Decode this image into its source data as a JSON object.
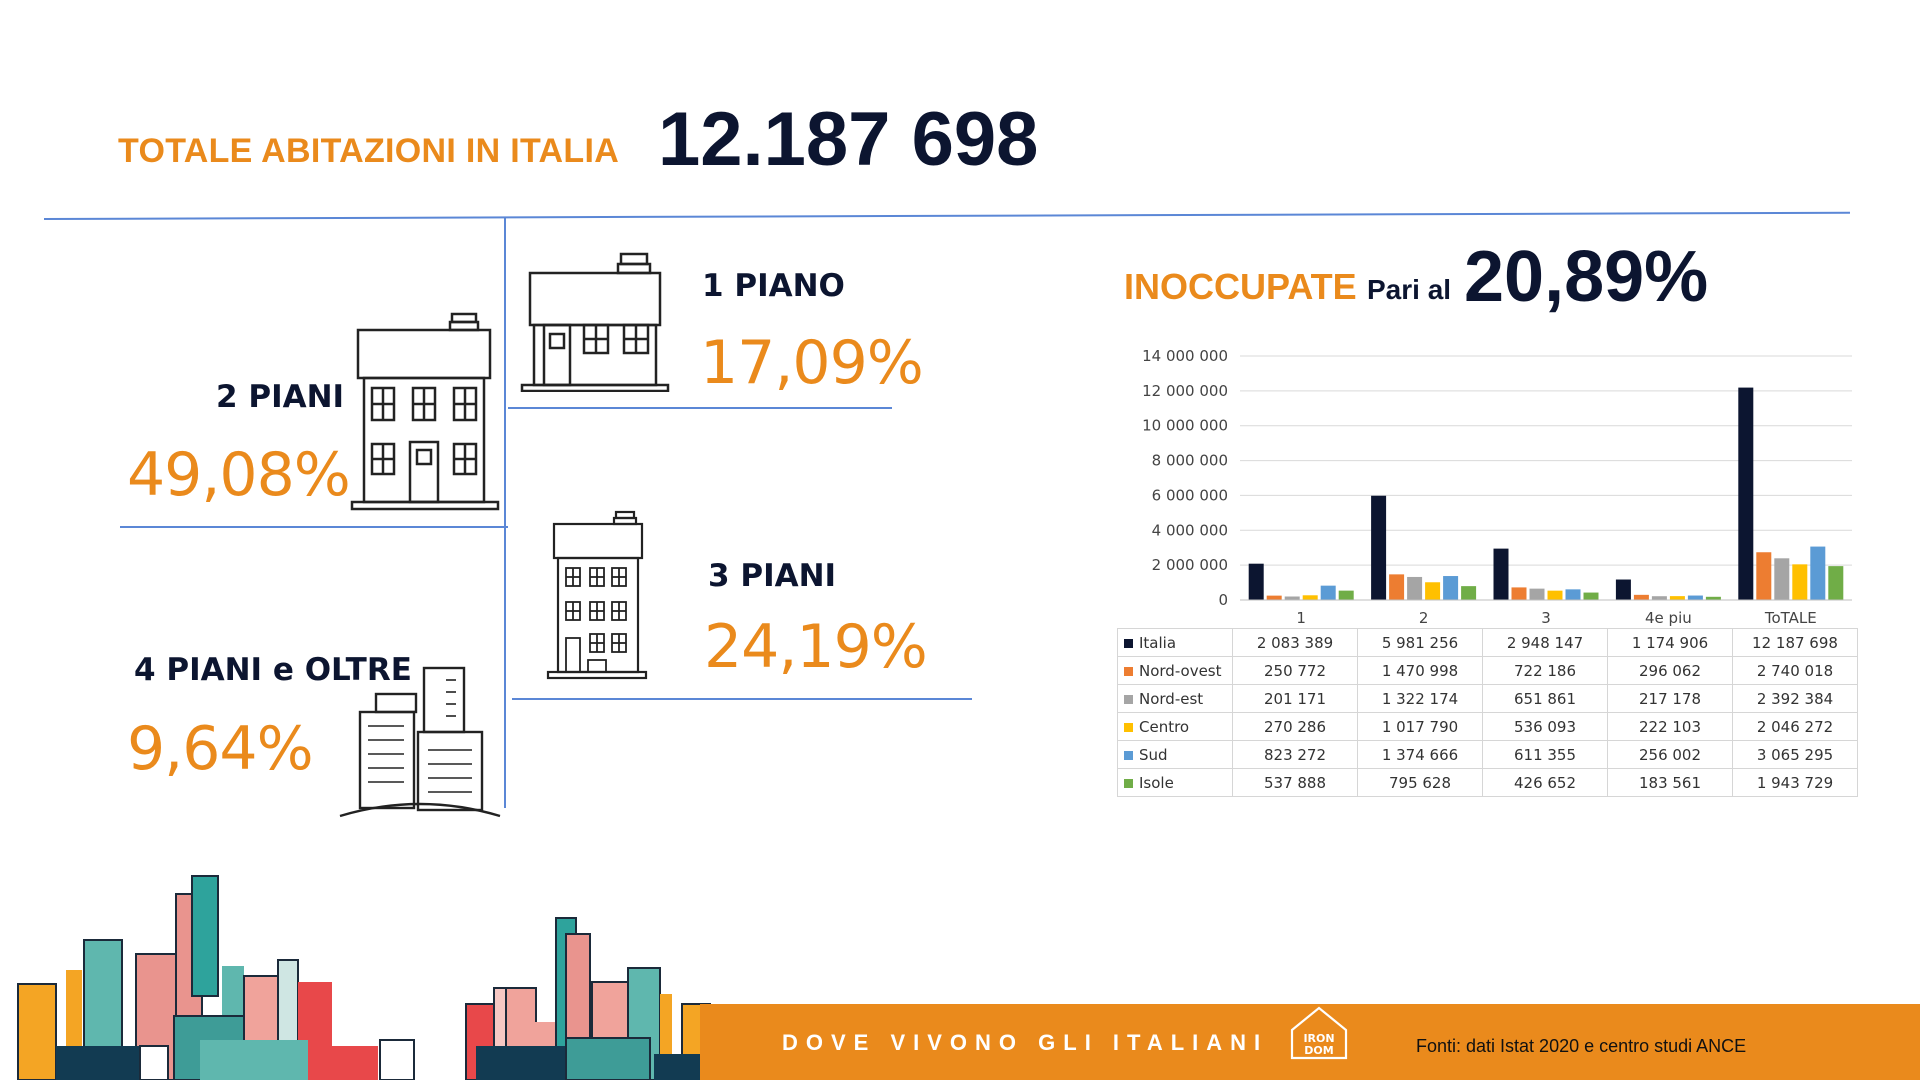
{
  "header": {
    "label": "TOTALE ABITAZIONI IN ITALIA",
    "total": "12.187 698"
  },
  "categories": {
    "one_floor": {
      "label": "1 PIANO",
      "percent": "17,09%",
      "icon": "single-story-house-icon"
    },
    "two_floors": {
      "label": "2 PIANI",
      "percent": "49,08%",
      "icon": "two-story-house-icon"
    },
    "three_floors": {
      "label": "3 PIANI",
      "percent": "24,19%",
      "icon": "three-story-building-icon"
    },
    "four_plus": {
      "label": "4 PIANI e OLTRE",
      "percent": "9,64%",
      "icon": "high-rise-buildings-icon"
    }
  },
  "unoccupied": {
    "label": "INOCCUPATE",
    "pari": "Pari al",
    "percent": "20,89%"
  },
  "chart_data": {
    "type": "bar",
    "categories": [
      "1",
      "2",
      "3",
      "4e piu",
      "ToTALE"
    ],
    "ylim": [
      0,
      14000000
    ],
    "yticks": [
      "14 000 000",
      "12 000 000",
      "10 000 000",
      "8 000 000",
      "6 000 000",
      "4 000 000",
      "2 000 000",
      "0"
    ],
    "ytick_values": [
      14000000,
      12000000,
      10000000,
      8000000,
      6000000,
      4000000,
      2000000,
      0
    ],
    "grid": true,
    "legend": "data-table",
    "series": [
      {
        "name": "Italia",
        "color": "#0c1530",
        "values": [
          2083389,
          5981256,
          2948147,
          1174906,
          12187698
        ],
        "labels": [
          "2 083 389",
          "5 981 256",
          "2 948 147",
          "1 174 906",
          "12 187 698"
        ]
      },
      {
        "name": "Nord-ovest",
        "color": "#ed7d31",
        "values": [
          250772,
          1470998,
          722186,
          296062,
          2740018
        ],
        "labels": [
          "250 772",
          "1 470 998",
          "722 186",
          "296 062",
          "2 740 018"
        ]
      },
      {
        "name": "Nord-est",
        "color": "#a5a5a5",
        "values": [
          201171,
          1322174,
          651861,
          217178,
          2392384
        ],
        "labels": [
          "201 171",
          "1 322 174",
          "651 861",
          "217 178",
          "2 392 384"
        ]
      },
      {
        "name": "Centro",
        "color": "#ffc000",
        "values": [
          270286,
          1017790,
          536093,
          222103,
          2046272
        ],
        "labels": [
          "270 286",
          "1 017 790",
          "536 093",
          "222 103",
          "2 046 272"
        ]
      },
      {
        "name": "Sud",
        "color": "#5b9bd5",
        "values": [
          823272,
          1374666,
          611355,
          256002,
          3065295
        ],
        "labels": [
          "823 272",
          "1 374 666",
          "611 355",
          "256 002",
          "3 065 295"
        ]
      },
      {
        "name": "Isole",
        "color": "#70ad47",
        "values": [
          537888,
          795628,
          426652,
          183561,
          1943729
        ],
        "labels": [
          "537 888",
          "795 628",
          "426 652",
          "183 561",
          "1 943 729"
        ]
      }
    ]
  },
  "footer": {
    "title": "DOVE VIVONO GLI ITALIANI",
    "source": "Fonti: dati Istat 2020 e centro studi ANCE",
    "logo_text_1": "IRON",
    "logo_text_2": "DOM",
    "bar_color": "#ea8a1c"
  }
}
